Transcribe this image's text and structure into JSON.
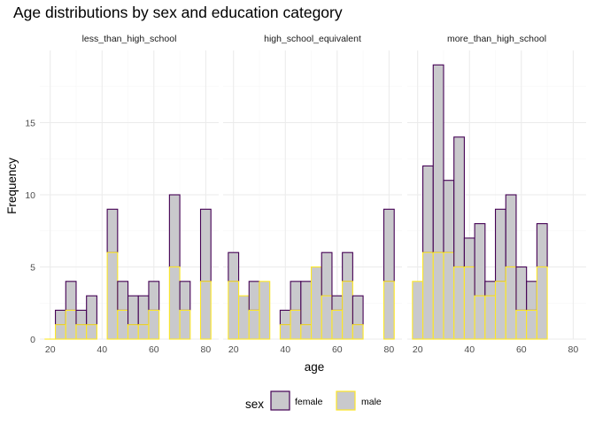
{
  "chart_data": {
    "type": "bar",
    "title": "Age distributions by sex and education category",
    "xlabel": "age",
    "ylabel": "Frequency",
    "xlim": [
      16,
      85
    ],
    "ylim": [
      0,
      20
    ],
    "x_ticks": [
      20,
      40,
      60,
      80
    ],
    "y_ticks": [
      0,
      5,
      10,
      15
    ],
    "grid": true,
    "stacked": true,
    "bins": [
      18,
      22,
      26,
      30,
      34,
      38,
      42,
      46,
      50,
      54,
      58,
      62,
      66,
      70,
      74,
      78,
      82
    ],
    "panels": [
      {
        "label": "less_than_high_school",
        "series": [
          {
            "name": "male",
            "values": [
              0,
              1,
              2,
              1,
              1,
              6,
              2,
              1,
              1,
              2,
              5,
              2,
              4
            ]
          },
          {
            "name": "female",
            "values": [
              0,
              1,
              2,
              1,
              2,
              3,
              2,
              2,
              2,
              2,
              5,
              2,
              5
            ]
          }
        ],
        "bin_starts": [
          18,
          22,
          26,
          30,
          34,
          42,
          46,
          50,
          54,
          58,
          66,
          70,
          78
        ]
      },
      {
        "label": "high_school_equivalent",
        "series": [
          {
            "name": "male",
            "values": [
              4,
              3,
              2,
              4,
              1,
              2,
              1,
              5,
              3,
              2,
              4,
              1,
              4
            ]
          },
          {
            "name": "female",
            "values": [
              2,
              0,
              2,
              0,
              1,
              2,
              3,
              0,
              3,
              1,
              2,
              2,
              5
            ]
          }
        ],
        "bin_starts": [
          18,
          22,
          26,
          30,
          38,
          42,
          46,
          50,
          54,
          58,
          62,
          66,
          78
        ]
      },
      {
        "label": "more_than_high_school",
        "series": [
          {
            "name": "male",
            "values": [
              4,
              6,
              6,
              6,
              5,
              5,
              3,
              3,
              4,
              5,
              2,
              2,
              5
            ]
          },
          {
            "name": "female",
            "values": [
              0,
              6,
              13,
              5,
              9,
              2,
              5,
              1,
              5,
              5,
              3,
              2,
              3
            ]
          }
        ],
        "bin_starts": [
          18,
          22,
          26,
          30,
          34,
          38,
          42,
          46,
          50,
          54,
          58,
          62,
          66
        ]
      }
    ],
    "legend": {
      "title": "sex",
      "placement": "bottom",
      "entries": [
        {
          "name": "female",
          "fill": "#c9c9cc",
          "stroke": "#440154"
        },
        {
          "name": "male",
          "fill": "#c9c9cc",
          "stroke": "#fde725"
        }
      ]
    },
    "colors": {
      "bar_fill": "#c9c9cc",
      "female_outline": "#440154",
      "male_outline": "#fde725",
      "grid_major": "#ebebeb",
      "grid_minor": "#f5f5f5"
    }
  }
}
